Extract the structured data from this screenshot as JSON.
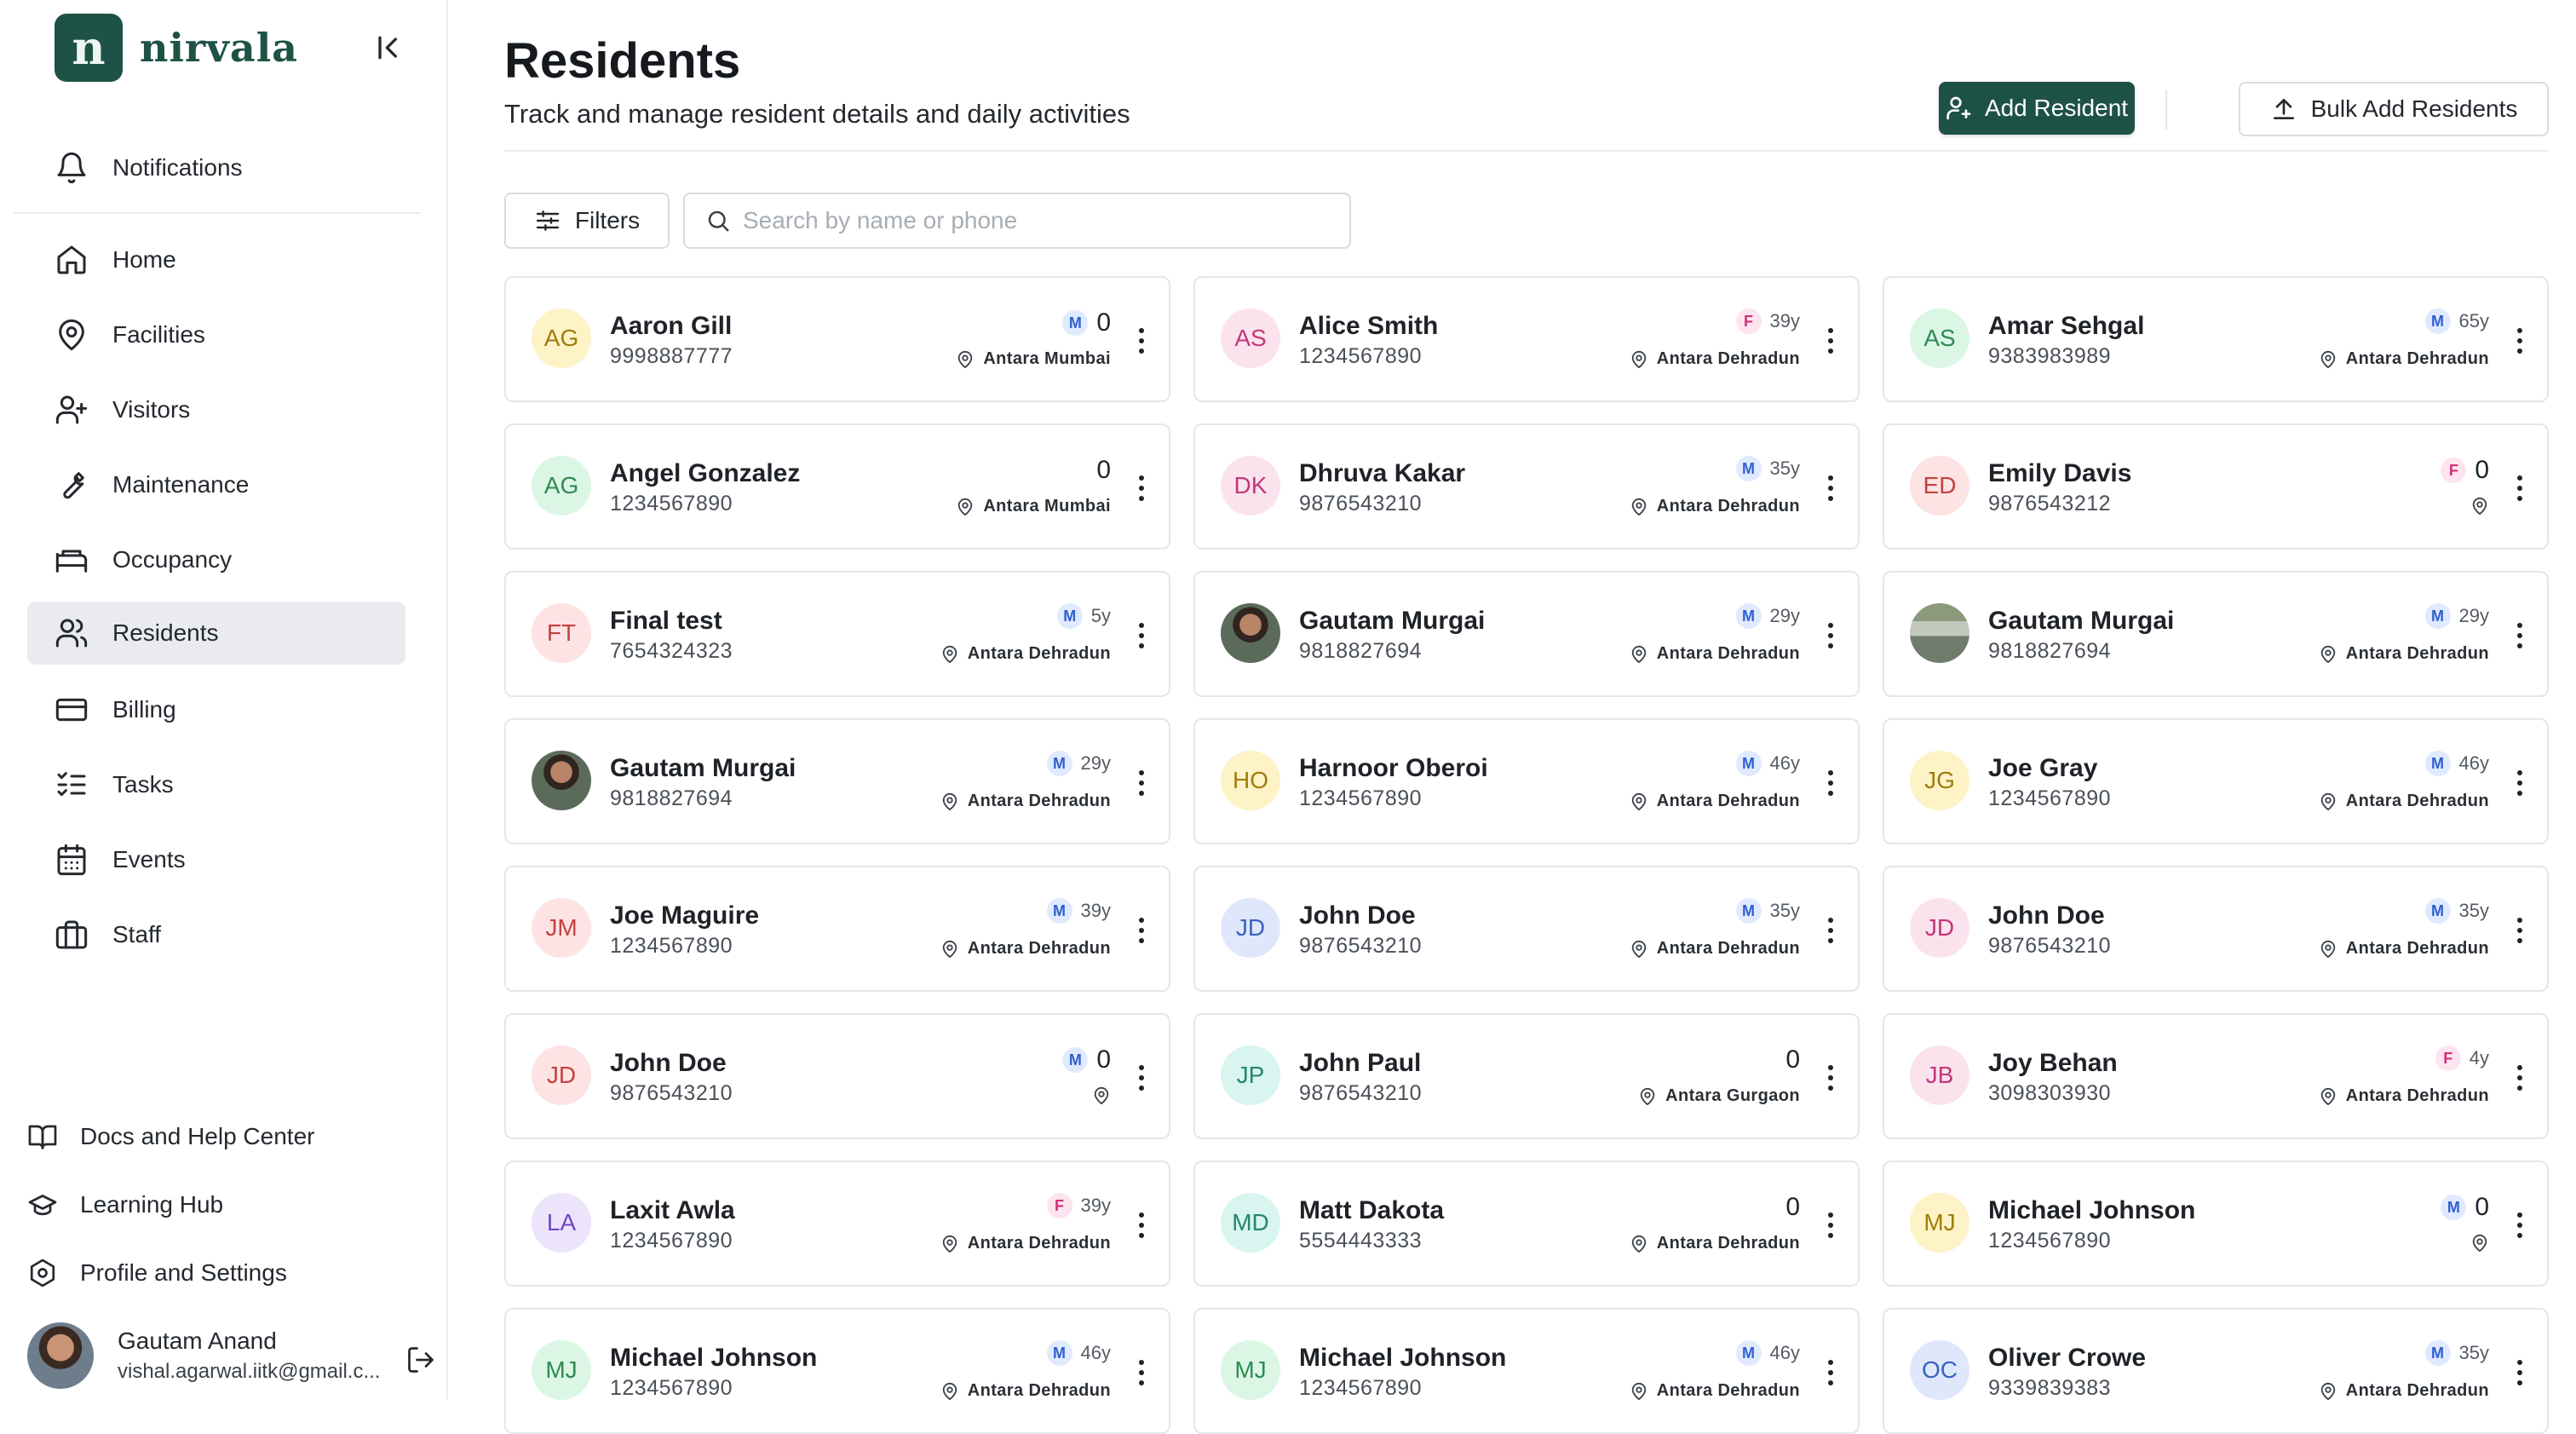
{
  "brand": {
    "logo_letter": "n",
    "name": "nirvala"
  },
  "sidebar": {
    "notifications_label": "Notifications",
    "items": [
      {
        "label": "Home",
        "icon": "home-icon"
      },
      {
        "label": "Facilities",
        "icon": "map-pin-icon"
      },
      {
        "label": "Visitors",
        "icon": "user-plus-icon"
      },
      {
        "label": "Maintenance",
        "icon": "wrench-icon"
      },
      {
        "label": "Occupancy",
        "icon": "bed-icon"
      },
      {
        "label": "Residents",
        "icon": "users-icon",
        "active": true
      },
      {
        "label": "Billing",
        "icon": "credit-card-icon"
      },
      {
        "label": "Tasks",
        "icon": "list-checks-icon"
      },
      {
        "label": "Events",
        "icon": "calendar-icon"
      },
      {
        "label": "Staff",
        "icon": "briefcase-icon"
      }
    ],
    "bottom": [
      {
        "label": "Docs and Help Center",
        "icon": "book-open-icon"
      },
      {
        "label": "Learning Hub",
        "icon": "graduation-cap-icon"
      },
      {
        "label": "Profile and Settings",
        "icon": "settings-icon"
      }
    ],
    "user": {
      "name": "Gautam Anand",
      "email": "vishal.agarwal.iitk@gmail.c..."
    }
  },
  "page": {
    "title": "Residents",
    "subtitle": "Track and manage resident details and daily activities",
    "add_label": "Add Resident",
    "bulk_label": "Bulk Add Residents",
    "filters_label": "Filters",
    "search_placeholder": "Search by name or phone"
  },
  "colors": {
    "brand": "#1e5246",
    "male_badge": "#2f5fcf",
    "female_badge": "#d0307a"
  },
  "residents": [
    {
      "initials": "AG",
      "name": "Aaron Gill",
      "phone": "9998887777",
      "gender": "M",
      "age": "0",
      "location": "Antara Mumbai",
      "avatar_bg": "#fdf3c7",
      "avatar_fg": "#a07c0c"
    },
    {
      "initials": "AS",
      "name": "Alice Smith",
      "phone": "1234567890",
      "gender": "F",
      "age": "39y",
      "location": "Antara Dehradun",
      "avatar_bg": "#fbe3ee",
      "avatar_fg": "#c2377a"
    },
    {
      "initials": "AS",
      "name": "Amar Sehgal",
      "phone": "9383983989",
      "gender": "M",
      "age": "65y",
      "location": "Antara Dehradun",
      "avatar_bg": "#dcf6e5",
      "avatar_fg": "#2f8a52"
    },
    {
      "initials": "AG",
      "name": "Angel Gonzalez",
      "phone": "1234567890",
      "gender": "",
      "age": "0",
      "location": "Antara Mumbai",
      "avatar_bg": "#dcf6e5",
      "avatar_fg": "#2f8a52"
    },
    {
      "initials": "DK",
      "name": "Dhruva Kakar",
      "phone": "9876543210",
      "gender": "M",
      "age": "35y",
      "location": "Antara Dehradun",
      "avatar_bg": "#fbe3ee",
      "avatar_fg": "#c2377a"
    },
    {
      "initials": "ED",
      "name": "Emily Davis",
      "phone": "9876543212",
      "gender": "F",
      "age": "0",
      "location": "",
      "avatar_bg": "#fde3e3",
      "avatar_fg": "#c64040"
    },
    {
      "initials": "FT",
      "name": "Final test",
      "phone": "7654324323",
      "gender": "M",
      "age": "5y",
      "location": "Antara Dehradun",
      "avatar_bg": "#fde3e3",
      "avatar_fg": "#c64040"
    },
    {
      "initials": "",
      "photo": "portrait",
      "name": "Gautam Murgai",
      "phone": "9818827694",
      "gender": "M",
      "age": "29y",
      "location": "Antara Dehradun"
    },
    {
      "initials": "",
      "photo": "document",
      "name": "Gautam Murgai",
      "phone": "9818827694",
      "gender": "M",
      "age": "29y",
      "location": "Antara Dehradun"
    },
    {
      "initials": "",
      "photo": "portrait",
      "name": "Gautam Murgai",
      "phone": "9818827694",
      "gender": "M",
      "age": "29y",
      "location": "Antara Dehradun"
    },
    {
      "initials": "HO",
      "name": "Harnoor Oberoi",
      "phone": "1234567890",
      "gender": "M",
      "age": "46y",
      "location": "Antara Dehradun",
      "avatar_bg": "#fdf3c7",
      "avatar_fg": "#a07c0c"
    },
    {
      "initials": "JG",
      "name": "Joe Gray",
      "phone": "1234567890",
      "gender": "M",
      "age": "46y",
      "location": "Antara Dehradun",
      "avatar_bg": "#fdf3c7",
      "avatar_fg": "#a07c0c"
    },
    {
      "initials": "JM",
      "name": "Joe Maguire",
      "phone": "1234567890",
      "gender": "M",
      "age": "39y",
      "location": "Antara Dehradun",
      "avatar_bg": "#fde3e3",
      "avatar_fg": "#c64040"
    },
    {
      "initials": "JD",
      "name": "John Doe",
      "phone": "9876543210",
      "gender": "M",
      "age": "35y",
      "location": "Antara Dehradun",
      "avatar_bg": "#dfe8fb",
      "avatar_fg": "#3a62c2"
    },
    {
      "initials": "JD",
      "name": "John Doe",
      "phone": "9876543210",
      "gender": "M",
      "age": "35y",
      "location": "Antara Dehradun",
      "avatar_bg": "#fbe3ee",
      "avatar_fg": "#c2377a"
    },
    {
      "initials": "JD",
      "name": "John Doe",
      "phone": "9876543210",
      "gender": "M",
      "age": "0",
      "location": "",
      "avatar_bg": "#fde3e3",
      "avatar_fg": "#c64040"
    },
    {
      "initials": "JP",
      "name": "John Paul",
      "phone": "9876543210",
      "gender": "",
      "age": "0",
      "location": "Antara Gurgaon",
      "avatar_bg": "#d8f5ef",
      "avatar_fg": "#26866f"
    },
    {
      "initials": "JB",
      "name": "Joy Behan",
      "phone": "3098303930",
      "gender": "F",
      "age": "4y",
      "location": "Antara Dehradun",
      "avatar_bg": "#fbe3ee",
      "avatar_fg": "#c2377a"
    },
    {
      "initials": "LA",
      "name": "Laxit Awla",
      "phone": "1234567890",
      "gender": "F",
      "age": "39y",
      "location": "Antara Dehradun",
      "avatar_bg": "#ece4fb",
      "avatar_fg": "#7045c2"
    },
    {
      "initials": "MD",
      "name": "Matt Dakota",
      "phone": "5554443333",
      "gender": "",
      "age": "0",
      "location": "Antara Dehradun",
      "avatar_bg": "#d8f5ef",
      "avatar_fg": "#26866f"
    },
    {
      "initials": "MJ",
      "name": "Michael Johnson",
      "phone": "1234567890",
      "gender": "M",
      "age": "0",
      "location": "",
      "avatar_bg": "#fdf3c7",
      "avatar_fg": "#a07c0c"
    },
    {
      "initials": "MJ",
      "name": "Michael Johnson",
      "phone": "1234567890",
      "gender": "M",
      "age": "46y",
      "location": "Antara Dehradun",
      "avatar_bg": "#dcf6e5",
      "avatar_fg": "#2f8a52"
    },
    {
      "initials": "MJ",
      "name": "Michael Johnson",
      "phone": "1234567890",
      "gender": "M",
      "age": "46y",
      "location": "Antara Dehradun",
      "avatar_bg": "#dcf6e5",
      "avatar_fg": "#2f8a52"
    },
    {
      "initials": "OC",
      "name": "Oliver Crowe",
      "phone": "9339839383",
      "gender": "M",
      "age": "35y",
      "location": "Antara Dehradun",
      "avatar_bg": "#dfe8fb",
      "avatar_fg": "#3a62c2"
    }
  ]
}
